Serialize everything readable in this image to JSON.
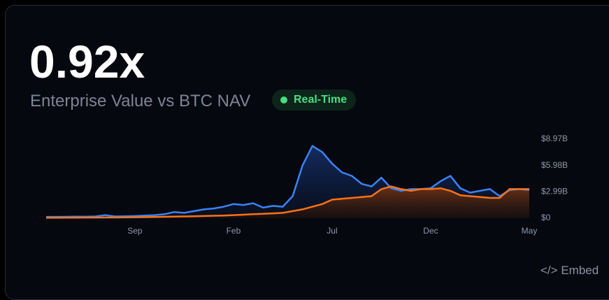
{
  "header": {
    "value": "0.92x",
    "subtitle": "Enterprise Value vs BTC NAV",
    "badge": "Real-Time"
  },
  "chart_data": {
    "type": "line",
    "categories": [
      null,
      null,
      null,
      null,
      null,
      null,
      null,
      null,
      null,
      "Sep",
      null,
      null,
      null,
      null,
      null,
      null,
      null,
      null,
      null,
      "Feb",
      null,
      null,
      null,
      null,
      null,
      null,
      null,
      null,
      null,
      "Jul",
      null,
      null,
      null,
      null,
      null,
      null,
      null,
      null,
      null,
      "Dec",
      null,
      null,
      null,
      null,
      null,
      null,
      null,
      null,
      null,
      "May"
    ],
    "series": [
      {
        "color": "#3b82f6",
        "values": [
          0.15,
          0.15,
          0.16,
          0.18,
          0.17,
          0.2,
          0.35,
          0.2,
          0.22,
          0.25,
          0.3,
          0.35,
          0.45,
          0.7,
          0.6,
          0.8,
          1.0,
          1.1,
          1.3,
          1.6,
          1.5,
          1.7,
          1.2,
          1.4,
          1.3,
          2.5,
          6.0,
          8.2,
          7.5,
          6.2,
          5.2,
          4.8,
          3.9,
          3.6,
          4.6,
          3.4,
          3.1,
          3.3,
          3.3,
          3.4,
          4.2,
          4.8,
          3.4,
          2.9,
          3.1,
          3.3,
          2.5,
          3.2,
          3.3,
          3.2
        ]
      },
      {
        "color": "#f97316",
        "values": [
          0.05,
          0.05,
          0.06,
          0.06,
          0.07,
          0.07,
          0.08,
          0.08,
          0.09,
          0.1,
          0.12,
          0.14,
          0.16,
          0.18,
          0.2,
          0.22,
          0.25,
          0.28,
          0.3,
          0.35,
          0.4,
          0.45,
          0.5,
          0.55,
          0.6,
          0.8,
          1.0,
          1.3,
          1.6,
          2.1,
          2.2,
          2.3,
          2.4,
          2.5,
          3.3,
          3.6,
          3.3,
          3.1,
          3.3,
          3.3,
          3.4,
          3.1,
          2.6,
          2.5,
          2.4,
          2.3,
          2.3,
          3.3,
          3.3,
          3.3
        ]
      }
    ],
    "ylim": [
      0,
      8.97
    ],
    "yticks": [
      {
        "value": 0,
        "label": "$0"
      },
      {
        "value": 2.99,
        "label": "$2.99B"
      },
      {
        "value": 5.98,
        "label": "$5.98B"
      },
      {
        "value": 8.97,
        "label": "$8.97B"
      }
    ]
  },
  "embed": {
    "icon": "</>",
    "label": "Embed"
  }
}
